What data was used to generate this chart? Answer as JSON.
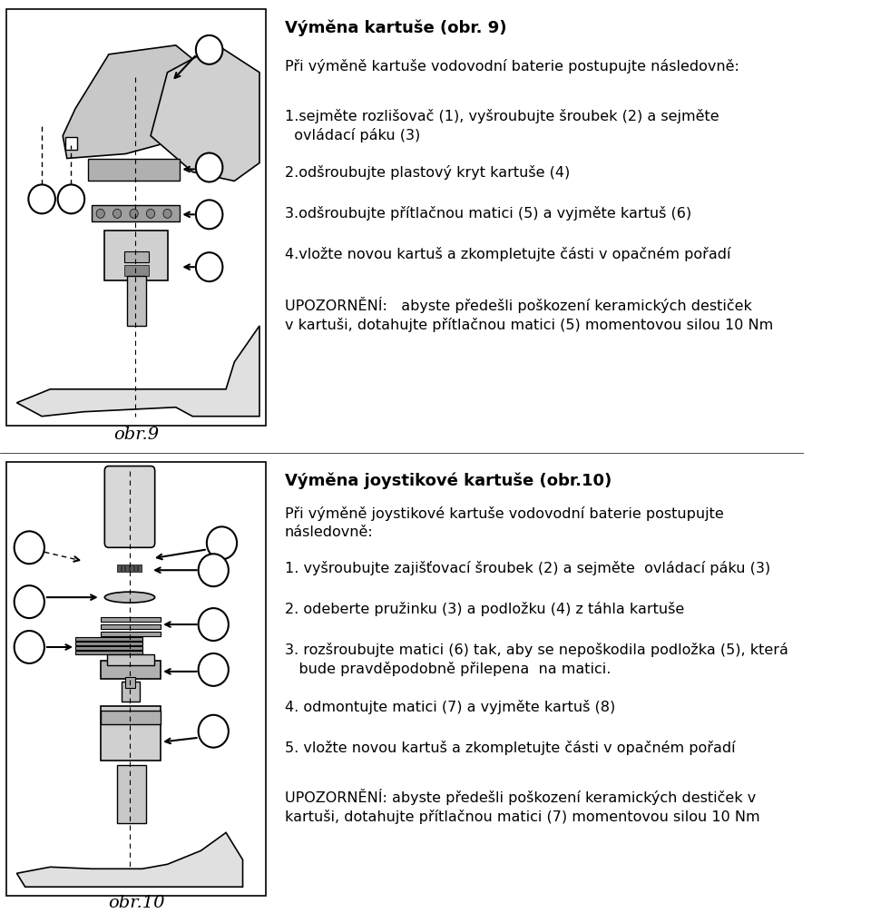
{
  "bg_color": "#ffffff",
  "title1": "Výměna kartuše (obr. 9)",
  "title2": "Výměna joystikové kartuše (obr.10)",
  "intro1": "Při výměně kartuše vodovodní baterie postupujte následovně:",
  "intro2": "Při výměně joystikové kartuše vodovodní baterie postupujte\nnásledovně:",
  "steps1": [
    "1.sejměte rozlišovač (1), vyšroubujte šroubek (2) a sejměte\n  ovládací páku (3)",
    "2.odšroubujte plastový kryt kartuše (4)",
    "3.odšroubujte přítlačnou matici (5) a vyjměte kartuš (6)",
    "4.vložte novou kartuš a zkompletujte části v opačném pořadí"
  ],
  "warning1": "UPOZORNĚNÍ:   abyste předešli poškození keramických destiček\nv kartuši, dotahujte přítlačnou matici (5) momentovou silou 10 Nm",
  "steps2": [
    "1. vyšroubujte zajišťovací šroubek (2) a sejměte  ovládací páku (3)",
    "2. odeberte pružinku (3) a podložku (4) z táhla kartuše",
    "3. rozšroubujte matici (6) tak, aby se nepoškodila podložka (5), která\n   bude pravděpodobně přilepena  na matici.",
    "4. odmontujte matici (7) a vyjměte kartuš (8)",
    "5. vložte novou kartuš a zkompletujte části v opačném pořadí"
  ],
  "warning2": "UPOZORNĚNÍ: abyste předešli poškození keramických destiček v\nkartuši, dotahujte přítlačnou matici (7) momentovou silou 10 Nm",
  "caption1": "obr.9",
  "caption2": "obr.10"
}
